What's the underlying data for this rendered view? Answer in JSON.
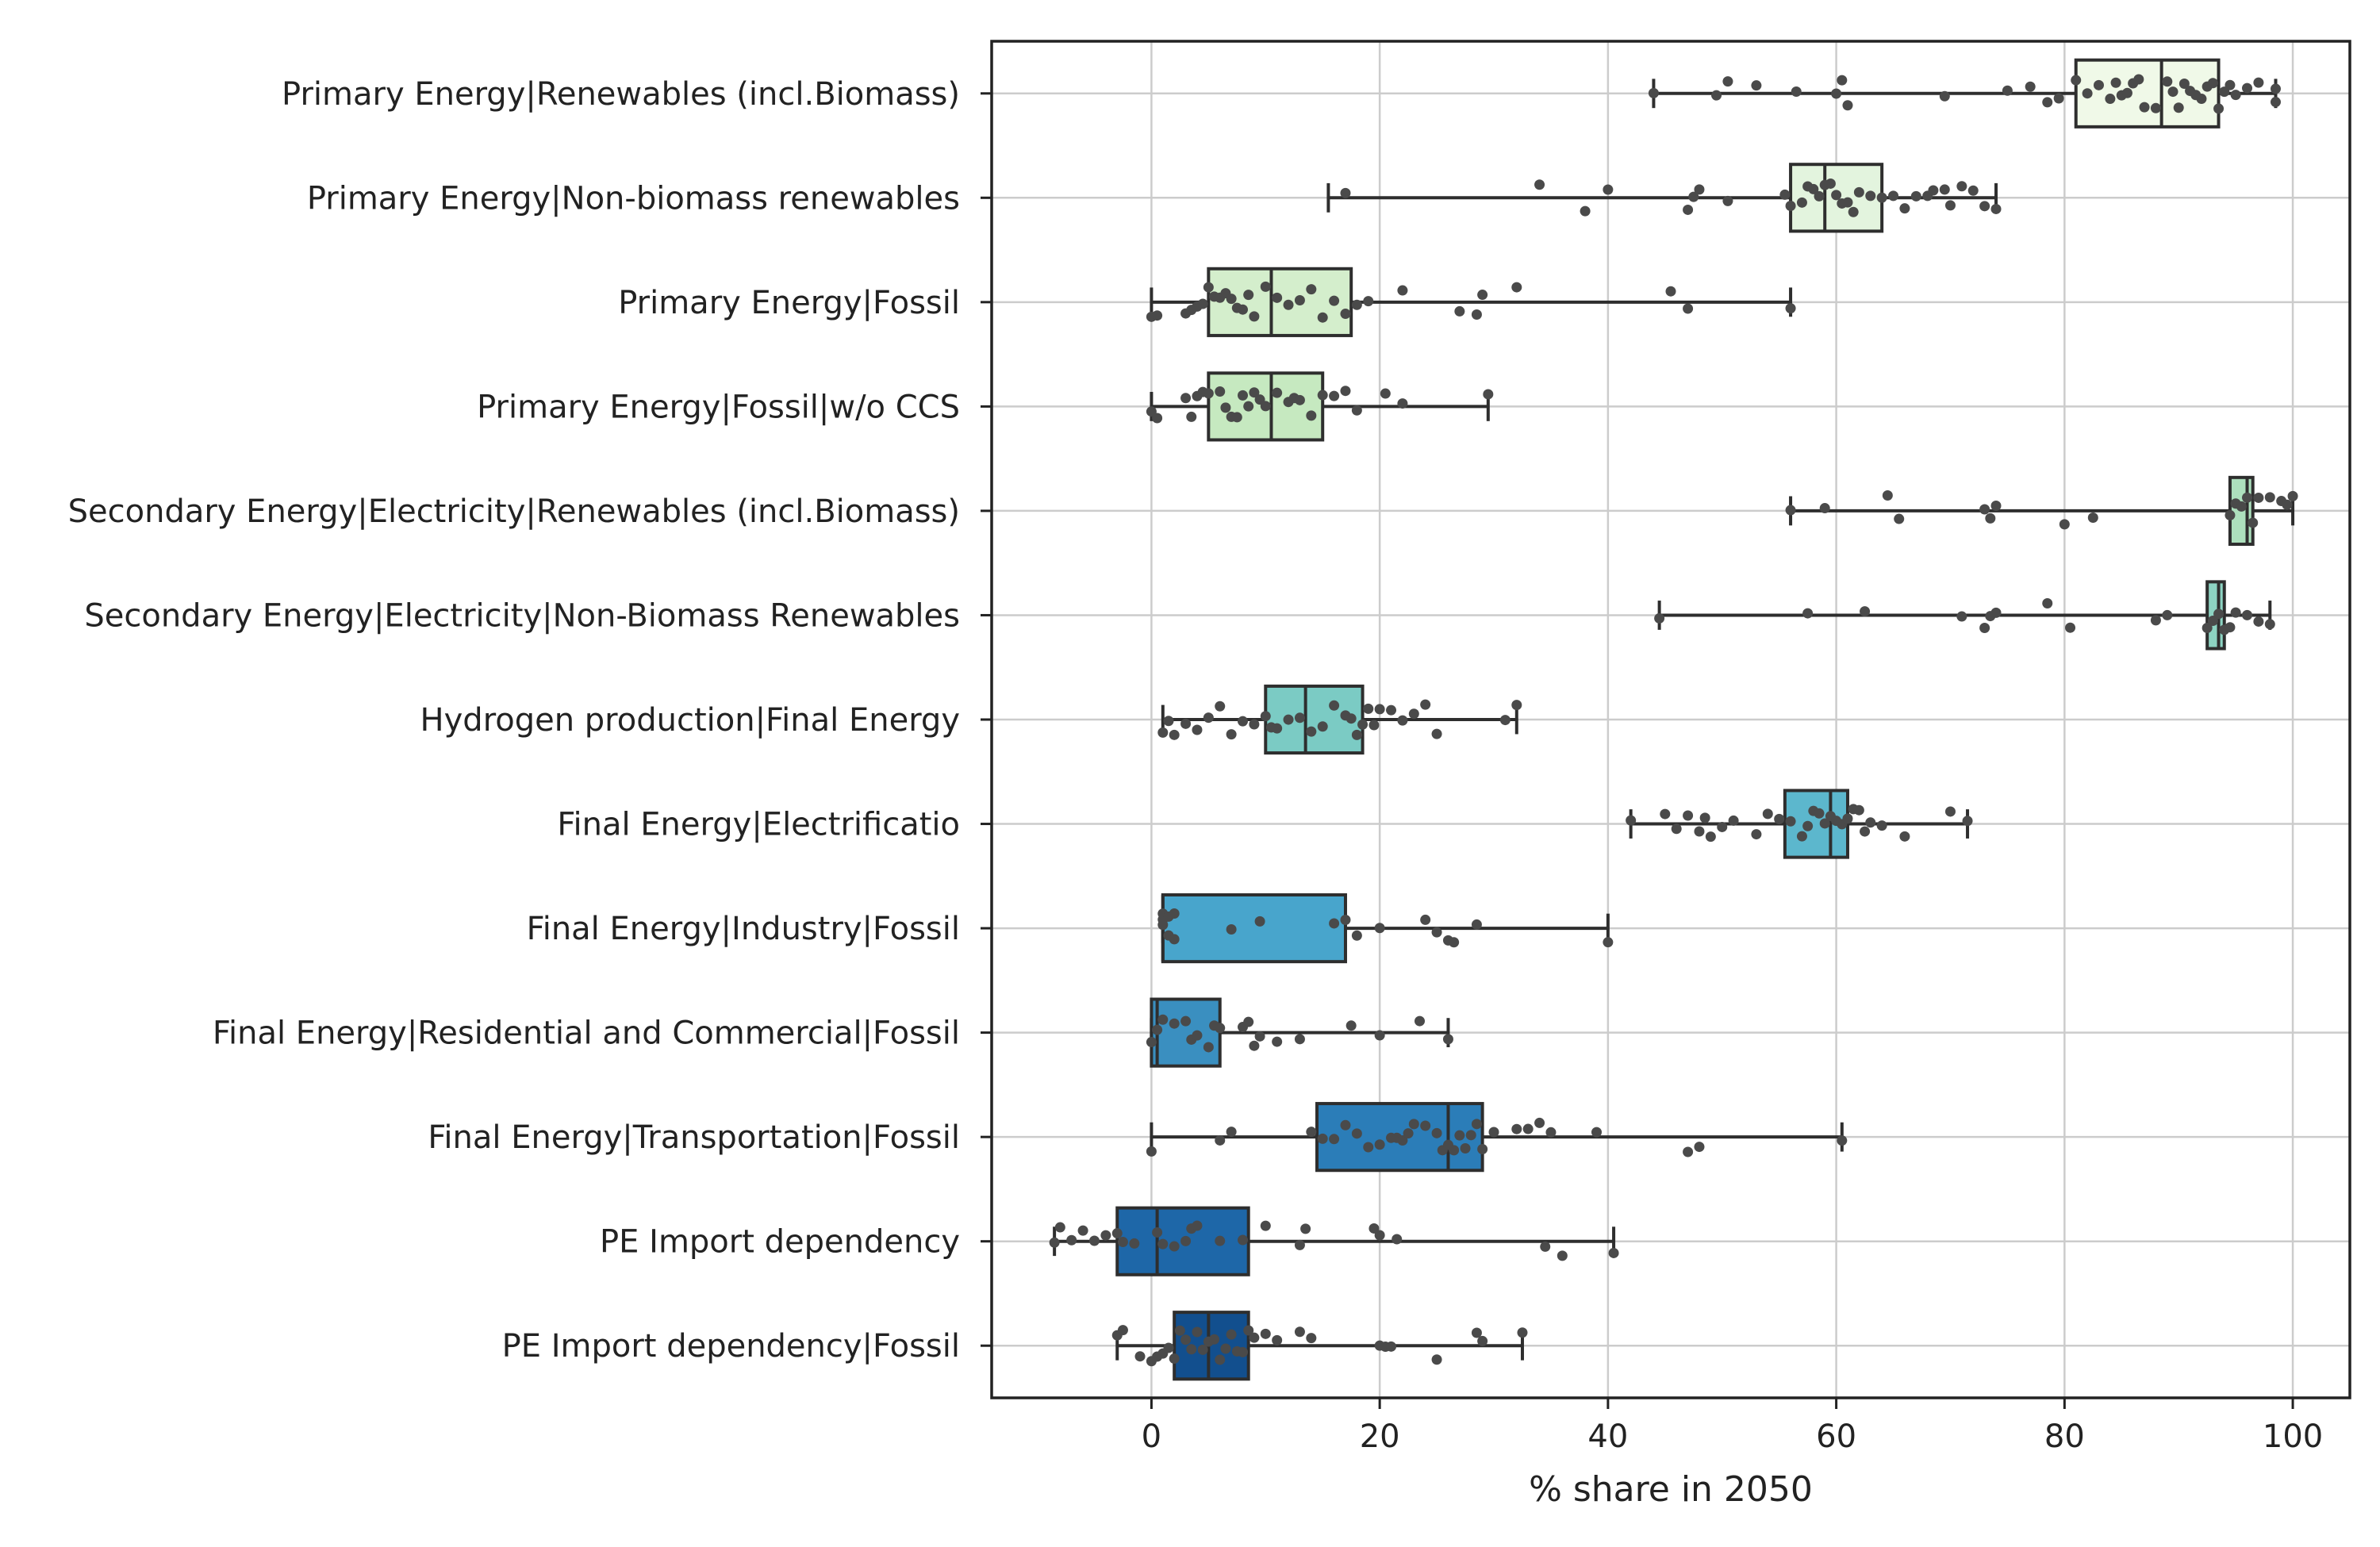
{
  "chart_data": {
    "type": "box",
    "orientation": "horizontal",
    "title": "",
    "xlabel": "% share in 2050",
    "ylabel": "",
    "xlim": [
      -14,
      105
    ],
    "xticks": [
      0,
      20,
      40,
      60,
      80,
      100
    ],
    "grid": true,
    "categories": [
      "Primary Energy|Renewables (incl.Biomass)",
      "Primary Energy|Non-biomass renewables",
      "Primary Energy|Fossil",
      "Primary Energy|Fossil|w/o CCS",
      "Secondary Energy|Electricity|Renewables (incl.Biomass)",
      "Secondary Energy|Electricity|Non-Biomass Renewables",
      "Hydrogen production|Final Energy",
      "Final Energy|Electrificatio",
      "Final Energy|Industry|Fossil",
      "Final Energy|Residential and Commercial|Fossil",
      "Final Energy|Transportation|Fossil",
      "PE Import dependency",
      "PE Import dependency|Fossil"
    ],
    "colors": [
      "#f0f9e8",
      "#e3f4de",
      "#d4eecc",
      "#c6e9c0",
      "#ade0bd",
      "#8dd3c2",
      "#7bcbc4",
      "#5cb7cd",
      "#48a5cc",
      "#3a8fc0",
      "#2b7db8",
      "#1e67a8",
      "#124f8e"
    ],
    "boxes": [
      {
        "whisker_low": 44,
        "q1": 81,
        "median": 88.5,
        "q3": 93.5,
        "whisker_high": 98.5
      },
      {
        "whisker_low": 15.5,
        "q1": 56,
        "median": 59,
        "q3": 64,
        "whisker_high": 74
      },
      {
        "whisker_low": 0,
        "q1": 5,
        "median": 10.5,
        "q3": 17.5,
        "whisker_high": 56
      },
      {
        "whisker_low": 0,
        "q1": 5,
        "median": 10.5,
        "q3": 15,
        "whisker_high": 29.5
      },
      {
        "whisker_low": 56,
        "q1": 94.5,
        "median": 96,
        "q3": 96.5,
        "whisker_high": 100
      },
      {
        "whisker_low": 44.5,
        "q1": 92.5,
        "median": 93.5,
        "q3": 94,
        "whisker_high": 98
      },
      {
        "whisker_low": 1,
        "q1": 10,
        "median": 13.5,
        "q3": 18.5,
        "whisker_high": 32
      },
      {
        "whisker_low": 42,
        "q1": 55.5,
        "median": 59.5,
        "q3": 61,
        "whisker_high": 71.5
      },
      {
        "whisker_low": 1,
        "q1": 1,
        "median": 1,
        "q3": 17,
        "whisker_high": 40
      },
      {
        "whisker_low": 0,
        "q1": 0,
        "median": 0.5,
        "q3": 6,
        "whisker_high": 26
      },
      {
        "whisker_low": 0,
        "q1": 14.5,
        "median": 26,
        "q3": 29,
        "whisker_high": 60.5
      },
      {
        "whisker_low": -8.5,
        "q1": -3,
        "median": 0.5,
        "q3": 8.5,
        "whisker_high": 40.5
      },
      {
        "whisker_low": -3,
        "q1": 2,
        "median": 5,
        "q3": 8.5,
        "whisker_high": 32.5
      }
    ],
    "points": [
      [
        44,
        49.5,
        50.5,
        53,
        56.5,
        60,
        60.5,
        61,
        69.5,
        75,
        77,
        78.5,
        79.5,
        81,
        82,
        83,
        84,
        84.5,
        85,
        85.5,
        86,
        86.5,
        87,
        88,
        89,
        89.5,
        90,
        90.5,
        91,
        91.5,
        92,
        92.5,
        93,
        93.5,
        94,
        94.5,
        95,
        96,
        97,
        98.5,
        98.5
      ],
      [
        17,
        34,
        38,
        40,
        47,
        47.5,
        48,
        50.5,
        55.5,
        56,
        57,
        57.5,
        58,
        58.5,
        59,
        59.5,
        60,
        60.5,
        61,
        61.5,
        62,
        63,
        64,
        65,
        66,
        67,
        68,
        68.5,
        69.5,
        70,
        71,
        72,
        73,
        74
      ],
      [
        0,
        0.5,
        3,
        3.5,
        4,
        4.5,
        5,
        5.5,
        6,
        6.5,
        7,
        7.5,
        8,
        8.5,
        9,
        10,
        11,
        12,
        13,
        14,
        15,
        16,
        17,
        18,
        19,
        22,
        27,
        28.5,
        29,
        32,
        45.5,
        47,
        56
      ],
      [
        0,
        0.5,
        3,
        3.5,
        4,
        4.5,
        5,
        6,
        6.5,
        7,
        7.5,
        8,
        8.5,
        9,
        9.5,
        10,
        11,
        12,
        12.5,
        13,
        14,
        15,
        16,
        17,
        18,
        20.5,
        22,
        29.5
      ],
      [
        56,
        59,
        64.5,
        65.5,
        73,
        73.5,
        74,
        80,
        82.5,
        94.5,
        95,
        95.5,
        96,
        96.5,
        97,
        98,
        99,
        99.5,
        100
      ],
      [
        44.5,
        57.5,
        62.5,
        71,
        73,
        73.5,
        74,
        78.5,
        80.5,
        88,
        89,
        92.5,
        93,
        93.5,
        94,
        94.5,
        95,
        96,
        97,
        98
      ],
      [
        1,
        1.5,
        2,
        3,
        4,
        5,
        6,
        7,
        8,
        9,
        10,
        10.5,
        11,
        12,
        13,
        14,
        15,
        16,
        17,
        17.5,
        18,
        18.5,
        19,
        19.5,
        20,
        21,
        22,
        23,
        24,
        25,
        31,
        32
      ],
      [
        42,
        45,
        46,
        47,
        48,
        48.5,
        49,
        50,
        51,
        53,
        54,
        55,
        56,
        57,
        57.5,
        58,
        58.5,
        59,
        59.5,
        60,
        60.5,
        61,
        61.5,
        62,
        62.5,
        63,
        64,
        66,
        70,
        71.5
      ],
      [
        1,
        1,
        1,
        1.5,
        1.5,
        2,
        2,
        7,
        9.5,
        16,
        17,
        18,
        20,
        24,
        25,
        26,
        26.5,
        28.5,
        40
      ],
      [
        0,
        0.5,
        1,
        2,
        3,
        3.5,
        4,
        5,
        5.5,
        6,
        8,
        8.5,
        9,
        9.5,
        11,
        13,
        17.5,
        20,
        23.5,
        26
      ],
      [
        0,
        6,
        7,
        14,
        15,
        16,
        17,
        18,
        19,
        20,
        21,
        21.5,
        22,
        22.5,
        23,
        24,
        25,
        25.5,
        26,
        26.5,
        27,
        27.5,
        28,
        28.5,
        29,
        30,
        32,
        33,
        34,
        35,
        39,
        47,
        48,
        60.5
      ],
      [
        -8.5,
        -8,
        -7,
        -6,
        -5,
        -4,
        -3,
        -2.5,
        -1.5,
        0.5,
        1,
        2,
        3,
        3.5,
        4,
        6,
        8,
        10,
        13,
        13.5,
        19.5,
        20,
        21.5,
        34.5,
        36,
        40.5
      ],
      [
        -3,
        -2.5,
        -1,
        0,
        0.5,
        1,
        1.5,
        2,
        2.5,
        3,
        3.5,
        4,
        4.5,
        5,
        5.5,
        6,
        6.5,
        7,
        7.5,
        8,
        8.5,
        9,
        10,
        11,
        13,
        14,
        20,
        20.5,
        21,
        25,
        28.5,
        29,
        32.5
      ]
    ]
  }
}
